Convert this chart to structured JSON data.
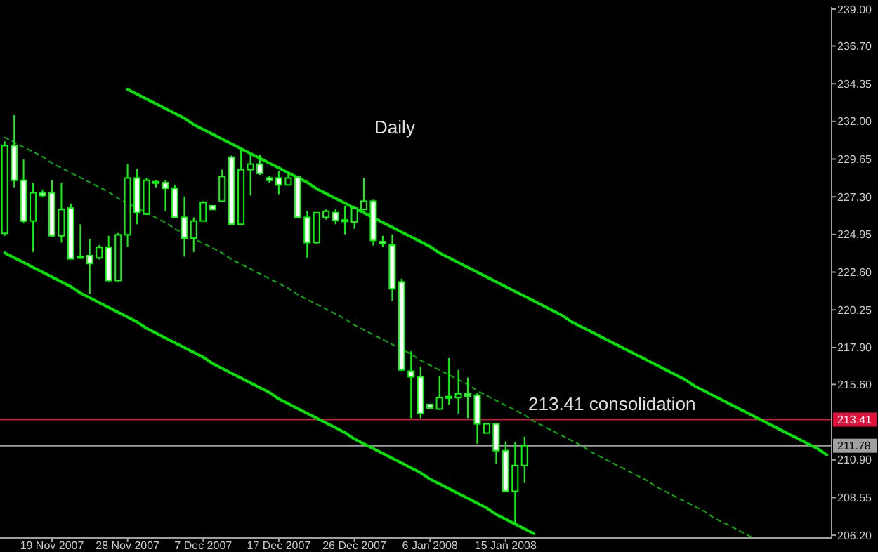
{
  "chart_data": {
    "type": "candlestick",
    "title": "Daily",
    "color": "#00ff00",
    "categories": [
      null,
      null,
      null,
      null,
      null,
      "19 Nov 2007",
      null,
      null,
      null,
      null,
      null,
      null,
      null,
      "28 Nov 2007",
      null,
      null,
      null,
      null,
      null,
      null,
      null,
      "7 Dec 2007",
      null,
      null,
      null,
      null,
      null,
      null,
      null,
      "17 Dec 2007",
      null,
      null,
      null,
      null,
      null,
      null,
      null,
      "26 Dec 2007",
      null,
      null,
      null,
      null,
      null,
      null,
      null,
      "6 Jan 2008",
      null,
      null,
      null,
      null,
      null,
      null,
      null,
      "15 Jan 2008",
      null,
      null,
      null,
      null,
      null,
      null,
      null,
      null,
      null,
      null,
      null,
      null,
      null,
      null,
      null,
      null,
      null,
      null,
      null,
      null,
      null,
      null,
      null,
      null,
      null,
      null,
      null,
      null,
      null,
      null,
      null,
      null,
      null,
      null
    ],
    "ohlc": [
      [
        225.02,
        230.75,
        224.87,
        230.49
      ],
      [
        230.49,
        232.39,
        227.89,
        228.33
      ],
      [
        228.33,
        229.62,
        225.65,
        225.79
      ],
      [
        225.79,
        228.18,
        223.86,
        227.55
      ],
      [
        227.55,
        227.75,
        227.26,
        227.38
      ],
      [
        227.55,
        228.33,
        224.78,
        224.87
      ],
      [
        224.87,
        228.18,
        224.44,
        226.51
      ],
      [
        226.6,
        226.88,
        223.4,
        223.43
      ],
      [
        223.57,
        225.59,
        223.44,
        223.49
      ],
      [
        223.63,
        224.67,
        221.26,
        223.14
      ],
      [
        223.49,
        224.29,
        223.4,
        224.15
      ],
      [
        224.15,
        224.87,
        222.02,
        222.08
      ],
      [
        222.08,
        225.04,
        222.02,
        224.93
      ],
      [
        224.93,
        229.34,
        224.18,
        228.47
      ],
      [
        228.47,
        229.04,
        225.59,
        226.31
      ],
      [
        226.23,
        228.47,
        226.17,
        228.33
      ],
      [
        228.15,
        228.33,
        227.89,
        228.24
      ],
      [
        228.18,
        228.33,
        226.4,
        227.83
      ],
      [
        227.83,
        228.04,
        225.99,
        226.02
      ],
      [
        226.02,
        227.32,
        223.57,
        224.72
      ],
      [
        224.72,
        226.02,
        223.86,
        225.79
      ],
      [
        225.79,
        227.03,
        225.78,
        226.94
      ],
      [
        226.74,
        226.77,
        226.49,
        226.51
      ],
      [
        227.03,
        228.99,
        226.99,
        228.56
      ],
      [
        229.77,
        229.88,
        225.56,
        225.59
      ],
      [
        225.59,
        230.2,
        225.56,
        228.99
      ],
      [
        228.99,
        229.91,
        227.38,
        229.34
      ],
      [
        229.34,
        229.91,
        228.67,
        228.76
      ],
      [
        228.47,
        228.61,
        228.18,
        228.33
      ],
      [
        228.47,
        228.91,
        227.46,
        228.04
      ],
      [
        228.04,
        228.76,
        228.02,
        228.47
      ],
      [
        228.53,
        228.59,
        225.99,
        226.02
      ],
      [
        226.02,
        226.4,
        223.51,
        224.44
      ],
      [
        224.44,
        226.31,
        224.4,
        226.31
      ],
      [
        226.02,
        226.51,
        225.88,
        226.4
      ],
      [
        226.31,
        226.51,
        225.59,
        225.82
      ],
      [
        225.85,
        226.74,
        224.96,
        225.79
      ],
      [
        225.73,
        226.74,
        225.3,
        226.6
      ],
      [
        226.51,
        228.47,
        226.47,
        227.03
      ],
      [
        227.03,
        227.12,
        224.26,
        224.58
      ],
      [
        224.5,
        224.87,
        224.15,
        224.38
      ],
      [
        224.29,
        224.96,
        220.83,
        221.56
      ],
      [
        221.99,
        222.19,
        216.44,
        216.51
      ],
      [
        216.43,
        217.67,
        213.49,
        216.08
      ],
      [
        216.08,
        216.72,
        213.49,
        213.78
      ],
      [
        214.35,
        214.35,
        214.11,
        214.13
      ],
      [
        214.07,
        216.14,
        214.02,
        214.78
      ],
      [
        214.78,
        217.24,
        214.35,
        214.84
      ],
      [
        214.78,
        216.51,
        213.78,
        215.02
      ],
      [
        215.02,
        216.03,
        213.49,
        214.87
      ],
      [
        214.93,
        215.08,
        211.9,
        213.14
      ],
      [
        212.57,
        213.14,
        212.55,
        213.14
      ],
      [
        213.14,
        213.14,
        210.67,
        211.47
      ],
      [
        211.47,
        212.05,
        208.92,
        208.94
      ],
      [
        208.94,
        211.99,
        206.87,
        210.55
      ],
      [
        210.55,
        212.34,
        209.46,
        211.78
      ],
      null,
      null,
      null,
      null,
      null,
      null,
      null,
      null,
      null,
      null,
      null,
      null,
      null,
      null,
      null,
      null,
      null,
      null,
      null,
      null,
      null,
      null,
      null,
      null,
      null,
      null,
      null,
      null,
      null,
      null,
      null,
      null
    ],
    "series": [
      {
        "type": "line",
        "color": "#00e600",
        "line_style": "solid",
        "values": [
          null,
          null,
          null,
          null,
          null,
          null,
          null,
          null,
          null,
          null,
          null,
          null,
          null,
          234.0,
          233.7,
          233.4,
          233.1,
          232.8,
          232.5,
          232.2,
          231.8,
          231.5,
          231.2,
          230.9,
          230.6,
          230.3,
          230.0,
          229.7,
          229.4,
          229.1,
          228.8,
          228.5,
          228.2,
          227.8,
          227.5,
          227.2,
          226.9,
          226.6,
          226.3,
          226.0,
          225.7,
          225.4,
          225.1,
          224.8,
          224.5,
          224.2,
          223.8,
          223.5,
          223.2,
          222.9,
          222.6,
          222.3,
          222.0,
          221.7,
          221.4,
          221.1,
          220.8,
          220.5,
          220.2,
          219.9,
          219.5,
          219.2,
          218.9,
          218.6,
          218.3,
          218.0,
          217.7,
          217.4,
          217.1,
          216.8,
          216.5,
          216.2,
          215.9,
          215.5,
          215.2,
          214.9,
          214.6,
          214.3,
          214.0,
          213.7,
          213.4,
          213.1,
          212.8,
          212.5,
          212.2,
          211.9,
          211.6,
          211.2
        ]
      },
      {
        "type": "line",
        "color": "#00b400",
        "line_style": "dashed",
        "values": [
          231.0,
          230.7,
          230.4,
          230.1,
          229.8,
          229.4,
          229.1,
          228.8,
          228.5,
          228.2,
          227.9,
          227.6,
          227.2,
          226.9,
          226.6,
          226.3,
          226.0,
          225.7,
          225.3,
          225.0,
          224.7,
          224.4,
          224.1,
          223.8,
          223.4,
          223.1,
          222.8,
          222.5,
          222.2,
          221.9,
          221.6,
          221.2,
          220.9,
          220.6,
          220.3,
          220.0,
          219.7,
          219.3,
          219.0,
          218.7,
          218.4,
          218.1,
          217.8,
          217.5,
          217.1,
          216.8,
          216.5,
          216.2,
          215.9,
          215.6,
          215.2,
          214.9,
          214.6,
          214.3,
          214.0,
          213.7,
          213.3,
          213.0,
          212.7,
          212.4,
          212.1,
          211.8,
          211.4,
          211.1,
          210.8,
          210.5,
          210.2,
          209.9,
          209.6,
          209.2,
          208.9,
          208.6,
          208.3,
          208.0,
          207.7,
          207.3,
          207.0,
          206.7,
          206.4,
          206.1,
          null,
          null,
          null,
          null,
          null,
          null,
          null,
          null
        ]
      },
      {
        "type": "line",
        "color": "#00e600",
        "line_style": "solid",
        "values": [
          223.8,
          223.5,
          223.2,
          222.9,
          222.6,
          222.3,
          222.0,
          221.7,
          221.3,
          221.0,
          220.7,
          220.4,
          220.1,
          219.8,
          219.5,
          219.1,
          218.8,
          218.5,
          218.2,
          217.9,
          217.6,
          217.3,
          216.9,
          216.6,
          216.3,
          216.0,
          215.7,
          215.4,
          215.1,
          214.7,
          214.4,
          214.1,
          213.8,
          213.5,
          213.2,
          212.9,
          212.6,
          212.2,
          211.9,
          211.6,
          211.3,
          211.0,
          210.7,
          210.4,
          210.1,
          209.7,
          209.4,
          209.1,
          208.8,
          208.5,
          208.2,
          207.9,
          207.5,
          207.2,
          206.9,
          206.6,
          206.3,
          null,
          null,
          null,
          null,
          null,
          null,
          null,
          null,
          null,
          null,
          null,
          null,
          null,
          null,
          null,
          null,
          null,
          null,
          null,
          null,
          null,
          null,
          null,
          null,
          null,
          null,
          null,
          null,
          null,
          null,
          null
        ]
      }
    ],
    "ylim": [
      206.03,
      239.13
    ],
    "yticks": [
      {
        "value": 239,
        "label": "239.00"
      },
      {
        "value": 236.7,
        "label": "236.70"
      },
      {
        "value": 234.35,
        "label": "234.35"
      },
      {
        "value": 232,
        "label": "232.00"
      },
      {
        "value": 229.65,
        "label": "229.65"
      },
      {
        "value": 227.3,
        "label": "227.30"
      },
      {
        "value": 224.95,
        "label": "224.95"
      },
      {
        "value": 222.6,
        "label": "222.60"
      },
      {
        "value": 220.25,
        "label": "220.25"
      },
      {
        "value": 217.9,
        "label": "217.90"
      },
      {
        "value": 215.6,
        "label": "215.60"
      },
      {
        "value": 210.9,
        "label": "210.90"
      },
      {
        "value": 208.55,
        "label": "208.55"
      },
      {
        "value": 206.2,
        "label": "206.20"
      }
    ],
    "ref_lines": [
      {
        "axis": "y",
        "value": 213.41,
        "label": "213.41",
        "color": "#e0103a"
      },
      {
        "axis": "y",
        "value": 211.78,
        "label": "211.78",
        "color": "#a0a0a0"
      }
    ],
    "annotations": [
      "213.41 consolidation"
    ]
  }
}
